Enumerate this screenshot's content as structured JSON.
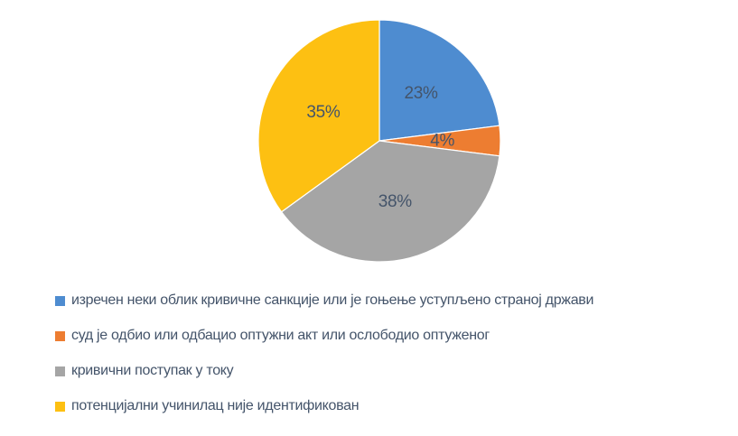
{
  "chart_data": {
    "type": "pie",
    "title": "",
    "direction": "clockwise",
    "start_angle_deg": 0,
    "legend_position": "bottom-left",
    "background_color": "#ffffff",
    "data_label_color": "#44546A",
    "legend_text_color": "#44546A",
    "slices": [
      {
        "label": "изречен неки облик кривичне санкције или је гоњење уступљено страној држави",
        "value": 23,
        "display_label": "23%",
        "color": "#4E8CD0"
      },
      {
        "label": "суд је одбио или одбацио оптужни акт или ослободио оптуженог",
        "value": 4,
        "display_label": "4%",
        "color": "#ED7D31"
      },
      {
        "label": "кривични поступак у току",
        "value": 38,
        "display_label": "38%",
        "color": "#A5A5A5"
      },
      {
        "label": "потенцијални учинилац није идентификован",
        "value": 35,
        "display_label": "35%",
        "color": "#FDC012"
      }
    ]
  }
}
